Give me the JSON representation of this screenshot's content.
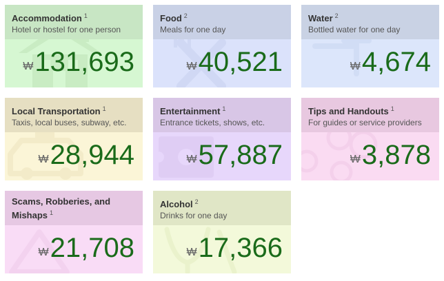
{
  "currency_symbol": "₩",
  "cards": {
    "accommodation": {
      "title": "Accommodation",
      "note": "1",
      "subtitle": "Hotel or hostel for one person",
      "amount": "131,693",
      "icon": "house-icon"
    },
    "food": {
      "title": "Food",
      "note": "2",
      "subtitle": "Meals for one day",
      "amount": "40,521",
      "icon": "fork-knife-icon"
    },
    "water": {
      "title": "Water",
      "note": "2",
      "subtitle": "Bottled water for one day",
      "amount": "4,674",
      "icon": "water-tap-icon"
    },
    "transport": {
      "title": "Local Transportation",
      "note": "1",
      "subtitle": "Taxis, local buses, subway, etc.",
      "amount": "28,944",
      "icon": "taxi-icon"
    },
    "entertainment": {
      "title": "Entertainment",
      "note": "1",
      "subtitle": "Entrance tickets, shows, etc.",
      "amount": "57,887",
      "icon": "ticket-icon"
    },
    "tips": {
      "title": "Tips and Handouts",
      "note": "1",
      "subtitle": "For guides or service providers",
      "amount": "3,878",
      "icon": "coins-icon"
    },
    "scams": {
      "title": "Scams, Robberies, and Mishaps",
      "note": "1",
      "subtitle": "",
      "amount": "21,708",
      "icon": "warning-icon"
    },
    "alcohol": {
      "title": "Alcohol",
      "note": "2",
      "subtitle": "Drinks for one day",
      "amount": "17,366",
      "icon": "wine-glass-icon"
    }
  }
}
